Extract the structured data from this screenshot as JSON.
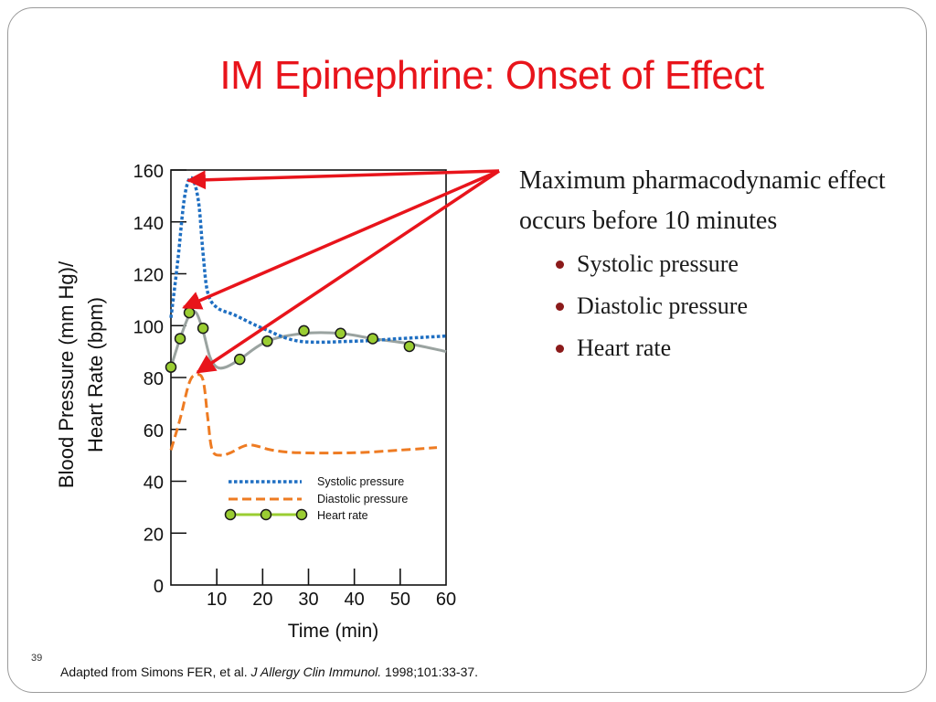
{
  "slide": {
    "title": "IM Epinephrine: Onset of Effect",
    "page_number": "39",
    "citation": {
      "prefix": "Adapted from Simons FER, et al. ",
      "journal": "J Allergy Clin Immunol.",
      "suffix": " 1998;101:33-37."
    }
  },
  "bullets": {
    "lead": "Maximum pharmacodynamic effect occurs before 10 minutes",
    "items": [
      "Systolic pressure",
      "Diastolic pressure",
      "Heart rate"
    ],
    "bullet_color": "#8b1a1a"
  },
  "colors": {
    "title": "#e8141b",
    "arrow": "#e8141b",
    "systolic": "#1f6fc2",
    "diastolic": "#ee7b22",
    "heart_rate_line": "#9aa3a0",
    "heart_rate_marker": "#9acd32",
    "legend_heart_rate_line": "#9acd32"
  },
  "chart_data": {
    "type": "line",
    "ylabel": "Blood Pressure (mm Hg)/ Heart Rate (bpm)",
    "xlabel": "Time (min)",
    "xlim": [
      0,
      60
    ],
    "ylim": [
      0,
      160
    ],
    "x_ticks": [
      10,
      20,
      30,
      40,
      50,
      60
    ],
    "y_ticks": [
      0,
      20,
      40,
      60,
      80,
      100,
      120,
      140,
      160
    ],
    "series": [
      {
        "name": "Systolic pressure",
        "style": "dotted",
        "x": [
          0,
          1.5,
          3,
          4.5,
          6,
          7,
          8,
          10,
          14,
          20,
          28,
          40,
          50,
          60
        ],
        "y": [
          103,
          125,
          150,
          157,
          148,
          128,
          113,
          107,
          104,
          99,
          94,
          94,
          95,
          96
        ]
      },
      {
        "name": "Diastolic pressure",
        "style": "dashed",
        "x": [
          0,
          2,
          4,
          5.5,
          7,
          8,
          9,
          11,
          13,
          17,
          22,
          28,
          40,
          50,
          58
        ],
        "y": [
          52,
          64,
          78,
          81,
          79,
          65,
          52,
          50,
          51,
          54,
          52,
          51,
          51,
          52,
          53
        ]
      },
      {
        "name": "Heart rate",
        "style": "solid-markers",
        "x": [
          0,
          2,
          4,
          5.5,
          7,
          8.5,
          10,
          12,
          15,
          21,
          29,
          37,
          44,
          52,
          60
        ],
        "y": [
          84,
          95,
          104,
          105,
          98,
          88,
          84,
          84,
          87,
          94,
          97,
          97,
          95,
          93,
          90
        ],
        "markers_x": [
          0,
          2,
          4,
          7,
          15,
          21,
          29,
          37,
          44,
          52
        ],
        "markers_y": [
          84,
          95,
          105,
          99,
          87,
          94,
          98,
          97,
          95,
          92
        ]
      }
    ],
    "legend": {
      "placement": "bottom-center",
      "entries": [
        "Systolic pressure",
        "Diastolic pressure",
        "Heart rate"
      ]
    },
    "annotations": [
      {
        "type": "arrow",
        "target": "Systolic pressure",
        "points_to": [
          3,
          156
        ]
      },
      {
        "type": "arrow",
        "target": "Heart rate",
        "points_to": [
          2,
          107
        ]
      },
      {
        "type": "arrow",
        "target": "Diastolic pressure",
        "points_to": [
          5,
          82
        ]
      }
    ],
    "grid": false
  }
}
